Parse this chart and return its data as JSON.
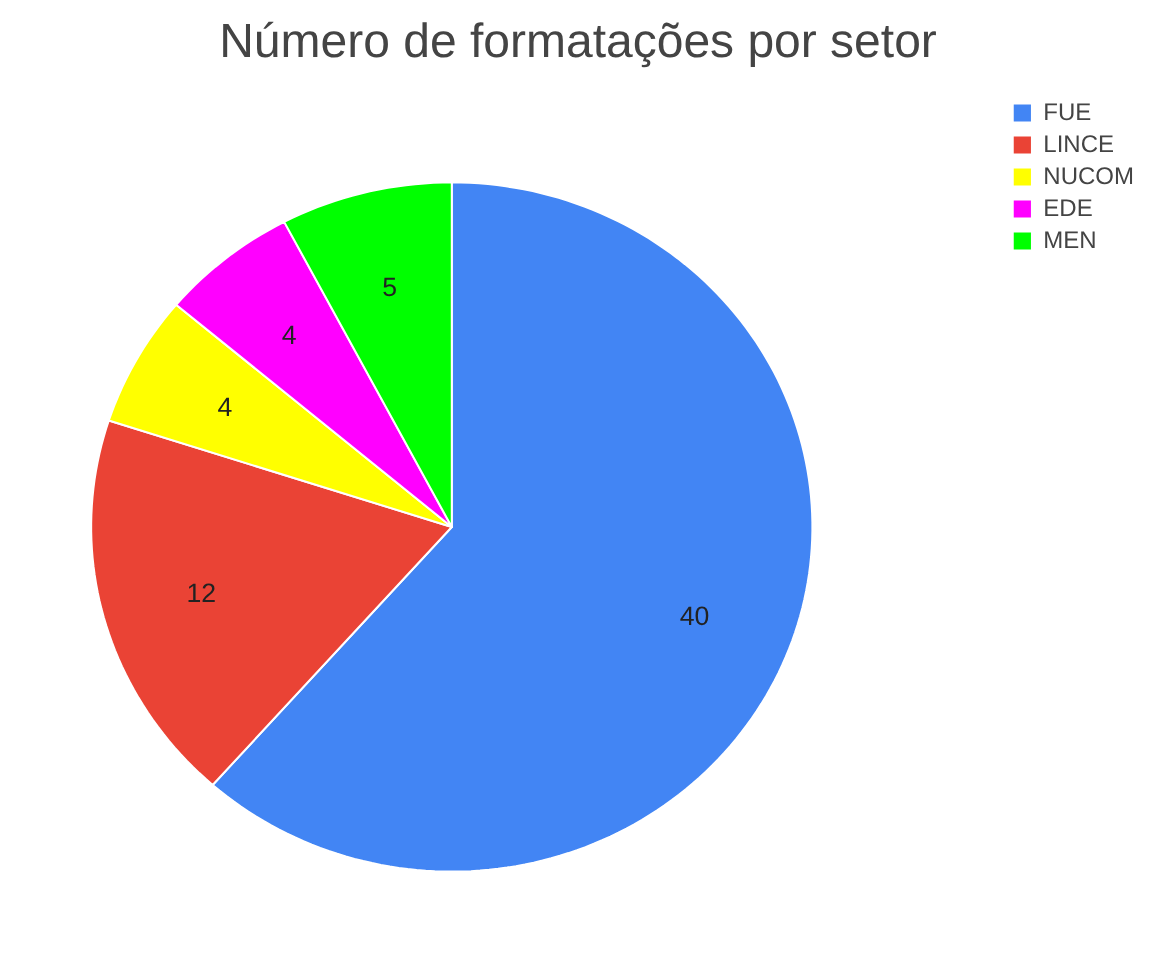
{
  "chart_data": {
    "type": "pie",
    "title": "Número de formatações por setor",
    "categories": [
      "FUE",
      "LINCE",
      "NUCOM",
      "EDE",
      "MEN"
    ],
    "values": [
      40,
      12,
      4,
      4,
      5
    ],
    "colors": [
      "#4285f4",
      "#ea4335",
      "#ffff00",
      "#ff00ff",
      "#00ff00"
    ],
    "data_labels": true,
    "legend": "top right"
  }
}
